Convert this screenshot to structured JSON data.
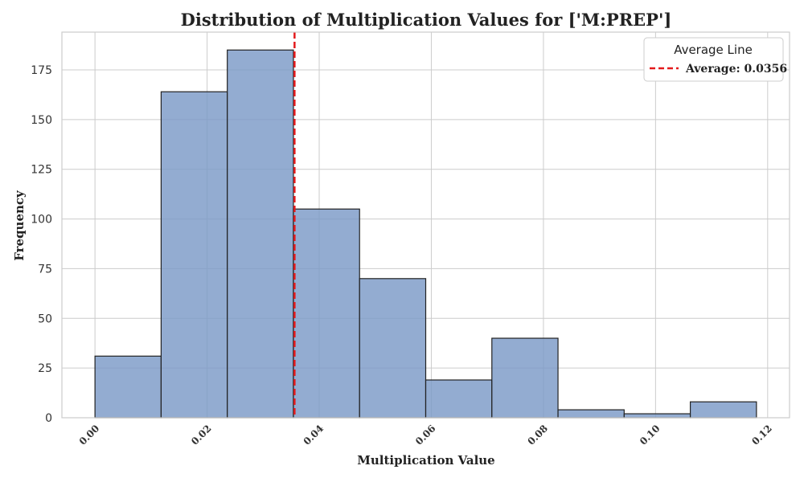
{
  "chart_data": {
    "type": "bar",
    "title": "Distribution of Multiplication Values for ['M:PREP']",
    "xlabel": "Multiplication Value",
    "ylabel": "Frequency",
    "xlim": [
      -0.0059,
      0.1239
    ],
    "ylim": [
      0,
      194
    ],
    "bin_edges": [
      0.0,
      0.0118,
      0.0236,
      0.0354,
      0.0472,
      0.059,
      0.0708,
      0.0826,
      0.0944,
      0.1062,
      0.118
    ],
    "values": [
      31,
      164,
      185,
      105,
      70,
      19,
      40,
      4,
      2,
      8
    ],
    "xticks": [
      0.0,
      0.02,
      0.04,
      0.06,
      0.08,
      0.1,
      0.12
    ],
    "xtick_labels": [
      "0.00",
      "0.02",
      "0.04",
      "0.06",
      "0.08",
      "0.10",
      "0.12"
    ],
    "yticks": [
      0,
      25,
      50,
      75,
      100,
      125,
      150,
      175
    ],
    "ytick_labels": [
      "0",
      "25",
      "50",
      "75",
      "100",
      "125",
      "150",
      "175"
    ],
    "grid": true,
    "bar_color": "#7b9ac7",
    "bar_edge_color": "#222222",
    "average_line": {
      "value": 0.0356,
      "color": "#e31a1c"
    },
    "legend": {
      "title": "Average Line",
      "label": "Average: 0.0356",
      "placement": "top-right"
    }
  }
}
